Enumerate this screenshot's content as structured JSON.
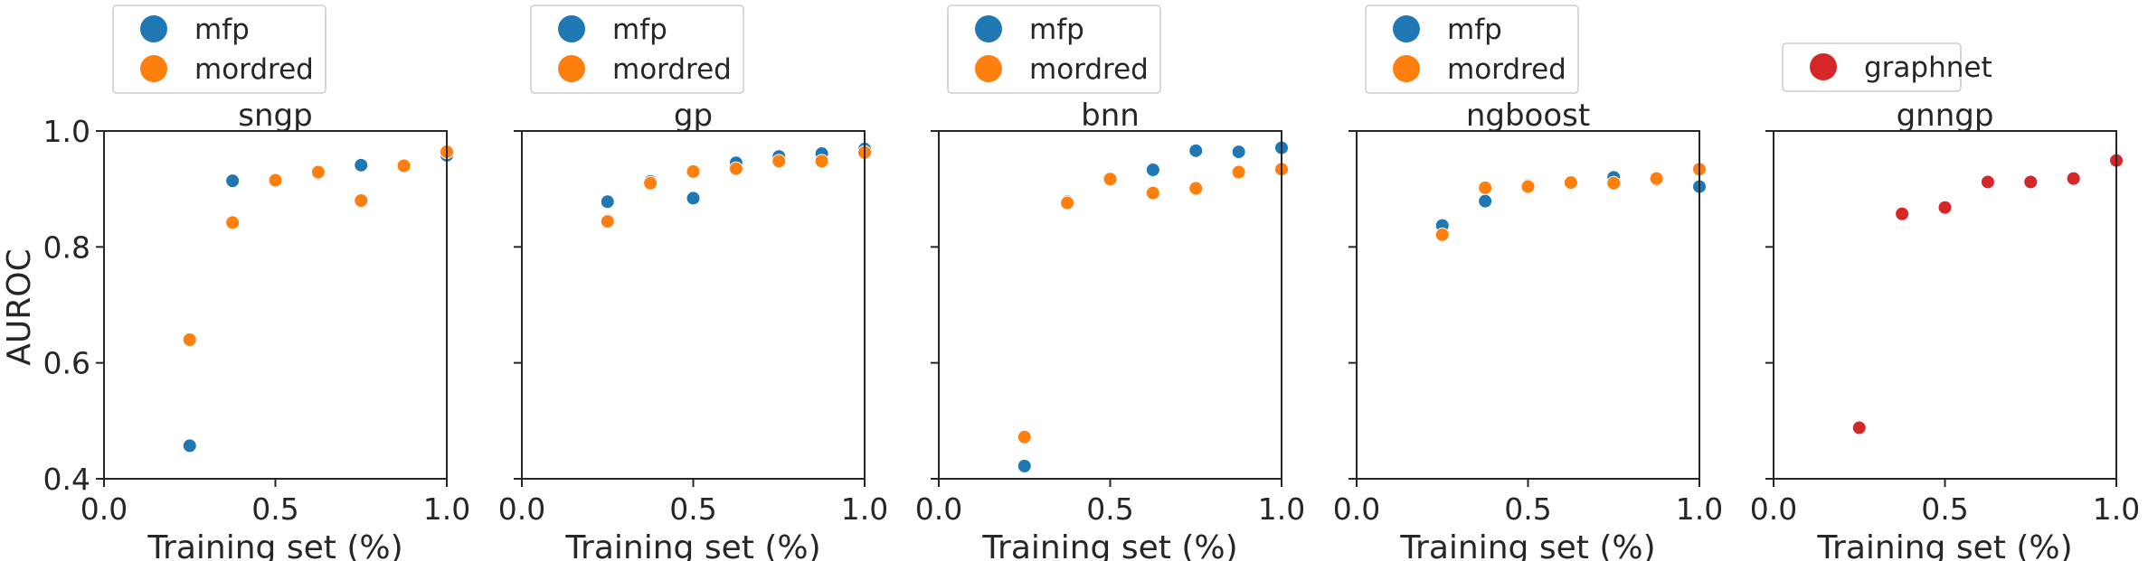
{
  "figure": {
    "ylabel": "AUROC",
    "xlabel": "Training set (%)"
  },
  "colors": {
    "mfp": "#1f77b4",
    "mordred": "#ff7f0e",
    "graphnet": "#d62728"
  },
  "chart_data": [
    {
      "type": "scatter",
      "title": "sngp",
      "xlabel": "Training set (%)",
      "ylabel": "AUROC",
      "xlim": [
        0.0,
        1.0
      ],
      "ylim": [
        0.4,
        1.0
      ],
      "xticks": [
        "0.0",
        "0.5",
        "1.0"
      ],
      "yticks": [
        "0.4",
        "0.6",
        "0.8",
        "1.0"
      ],
      "legend": "top-left, above axes",
      "series": [
        {
          "name": "mfp",
          "x": [
            0.25,
            0.375,
            0.5,
            0.625,
            0.75,
            0.875,
            1.0
          ],
          "y": [
            0.457,
            0.914,
            0.916,
            0.927,
            0.941,
            0.941,
            0.958
          ]
        },
        {
          "name": "mordred",
          "x": [
            0.25,
            0.375,
            0.5,
            0.625,
            0.75,
            0.875,
            1.0
          ],
          "y": [
            0.64,
            0.842,
            0.915,
            0.929,
            0.88,
            0.94,
            0.964
          ]
        }
      ]
    },
    {
      "type": "scatter",
      "title": "gp",
      "xlabel": "Training set (%)",
      "xlim": [
        0.0,
        1.0
      ],
      "ylim": [
        0.4,
        1.0
      ],
      "xticks": [
        "0.0",
        "0.5",
        "1.0"
      ],
      "legend": "top-left, above axes",
      "series": [
        {
          "name": "mfp",
          "x": [
            0.25,
            0.375,
            0.5,
            0.625,
            0.75,
            0.875,
            1.0
          ],
          "y": [
            0.878,
            0.913,
            0.884,
            0.945,
            0.956,
            0.961,
            0.969
          ]
        },
        {
          "name": "mordred",
          "x": [
            0.25,
            0.375,
            0.5,
            0.625,
            0.75,
            0.875,
            1.0
          ],
          "y": [
            0.844,
            0.91,
            0.93,
            0.935,
            0.948,
            0.948,
            0.963
          ]
        }
      ]
    },
    {
      "type": "scatter",
      "title": "bnn",
      "xlabel": "Training set (%)",
      "xlim": [
        0.0,
        1.0
      ],
      "ylim": [
        0.4,
        1.0
      ],
      "xticks": [
        "0.0",
        "0.5",
        "1.0"
      ],
      "legend": "top-left, above axes",
      "series": [
        {
          "name": "mfp",
          "x": [
            0.25,
            0.375,
            0.5,
            0.625,
            0.75,
            0.875,
            1.0
          ],
          "y": [
            0.422,
            0.878,
            0.916,
            0.933,
            0.966,
            0.964,
            0.971
          ]
        },
        {
          "name": "mordred",
          "x": [
            0.25,
            0.375,
            0.5,
            0.625,
            0.75,
            0.875,
            1.0
          ],
          "y": [
            0.472,
            0.876,
            0.917,
            0.893,
            0.901,
            0.929,
            0.934
          ]
        }
      ]
    },
    {
      "type": "scatter",
      "title": "ngboost",
      "xlabel": "Training set (%)",
      "xlim": [
        0.0,
        1.0
      ],
      "ylim": [
        0.4,
        1.0
      ],
      "xticks": [
        "0.0",
        "0.5",
        "1.0"
      ],
      "legend": "top-left, above axes",
      "series": [
        {
          "name": "mfp",
          "x": [
            0.25,
            0.375,
            0.5,
            0.625,
            0.75,
            0.875,
            1.0
          ],
          "y": [
            0.837,
            0.879,
            0.906,
            0.911,
            0.92,
            0.916,
            0.904
          ]
        },
        {
          "name": "mordred",
          "x": [
            0.25,
            0.375,
            0.5,
            0.625,
            0.75,
            0.875,
            1.0
          ],
          "y": [
            0.821,
            0.902,
            0.904,
            0.911,
            0.91,
            0.918,
            0.934
          ]
        }
      ]
    },
    {
      "type": "scatter",
      "title": "gnngp",
      "xlabel": "Training set (%)",
      "xlim": [
        0.0,
        1.0
      ],
      "ylim": [
        0.4,
        1.0
      ],
      "xticks": [
        "0.0",
        "0.5",
        "1.0"
      ],
      "legend": "top-left, above axes",
      "series": [
        {
          "name": "graphnet",
          "x": [
            0.25,
            0.375,
            0.5,
            0.625,
            0.75,
            0.875,
            1.0
          ],
          "y": [
            0.488,
            0.857,
            0.868,
            0.912,
            0.912,
            0.918,
            0.949
          ]
        }
      ]
    }
  ]
}
